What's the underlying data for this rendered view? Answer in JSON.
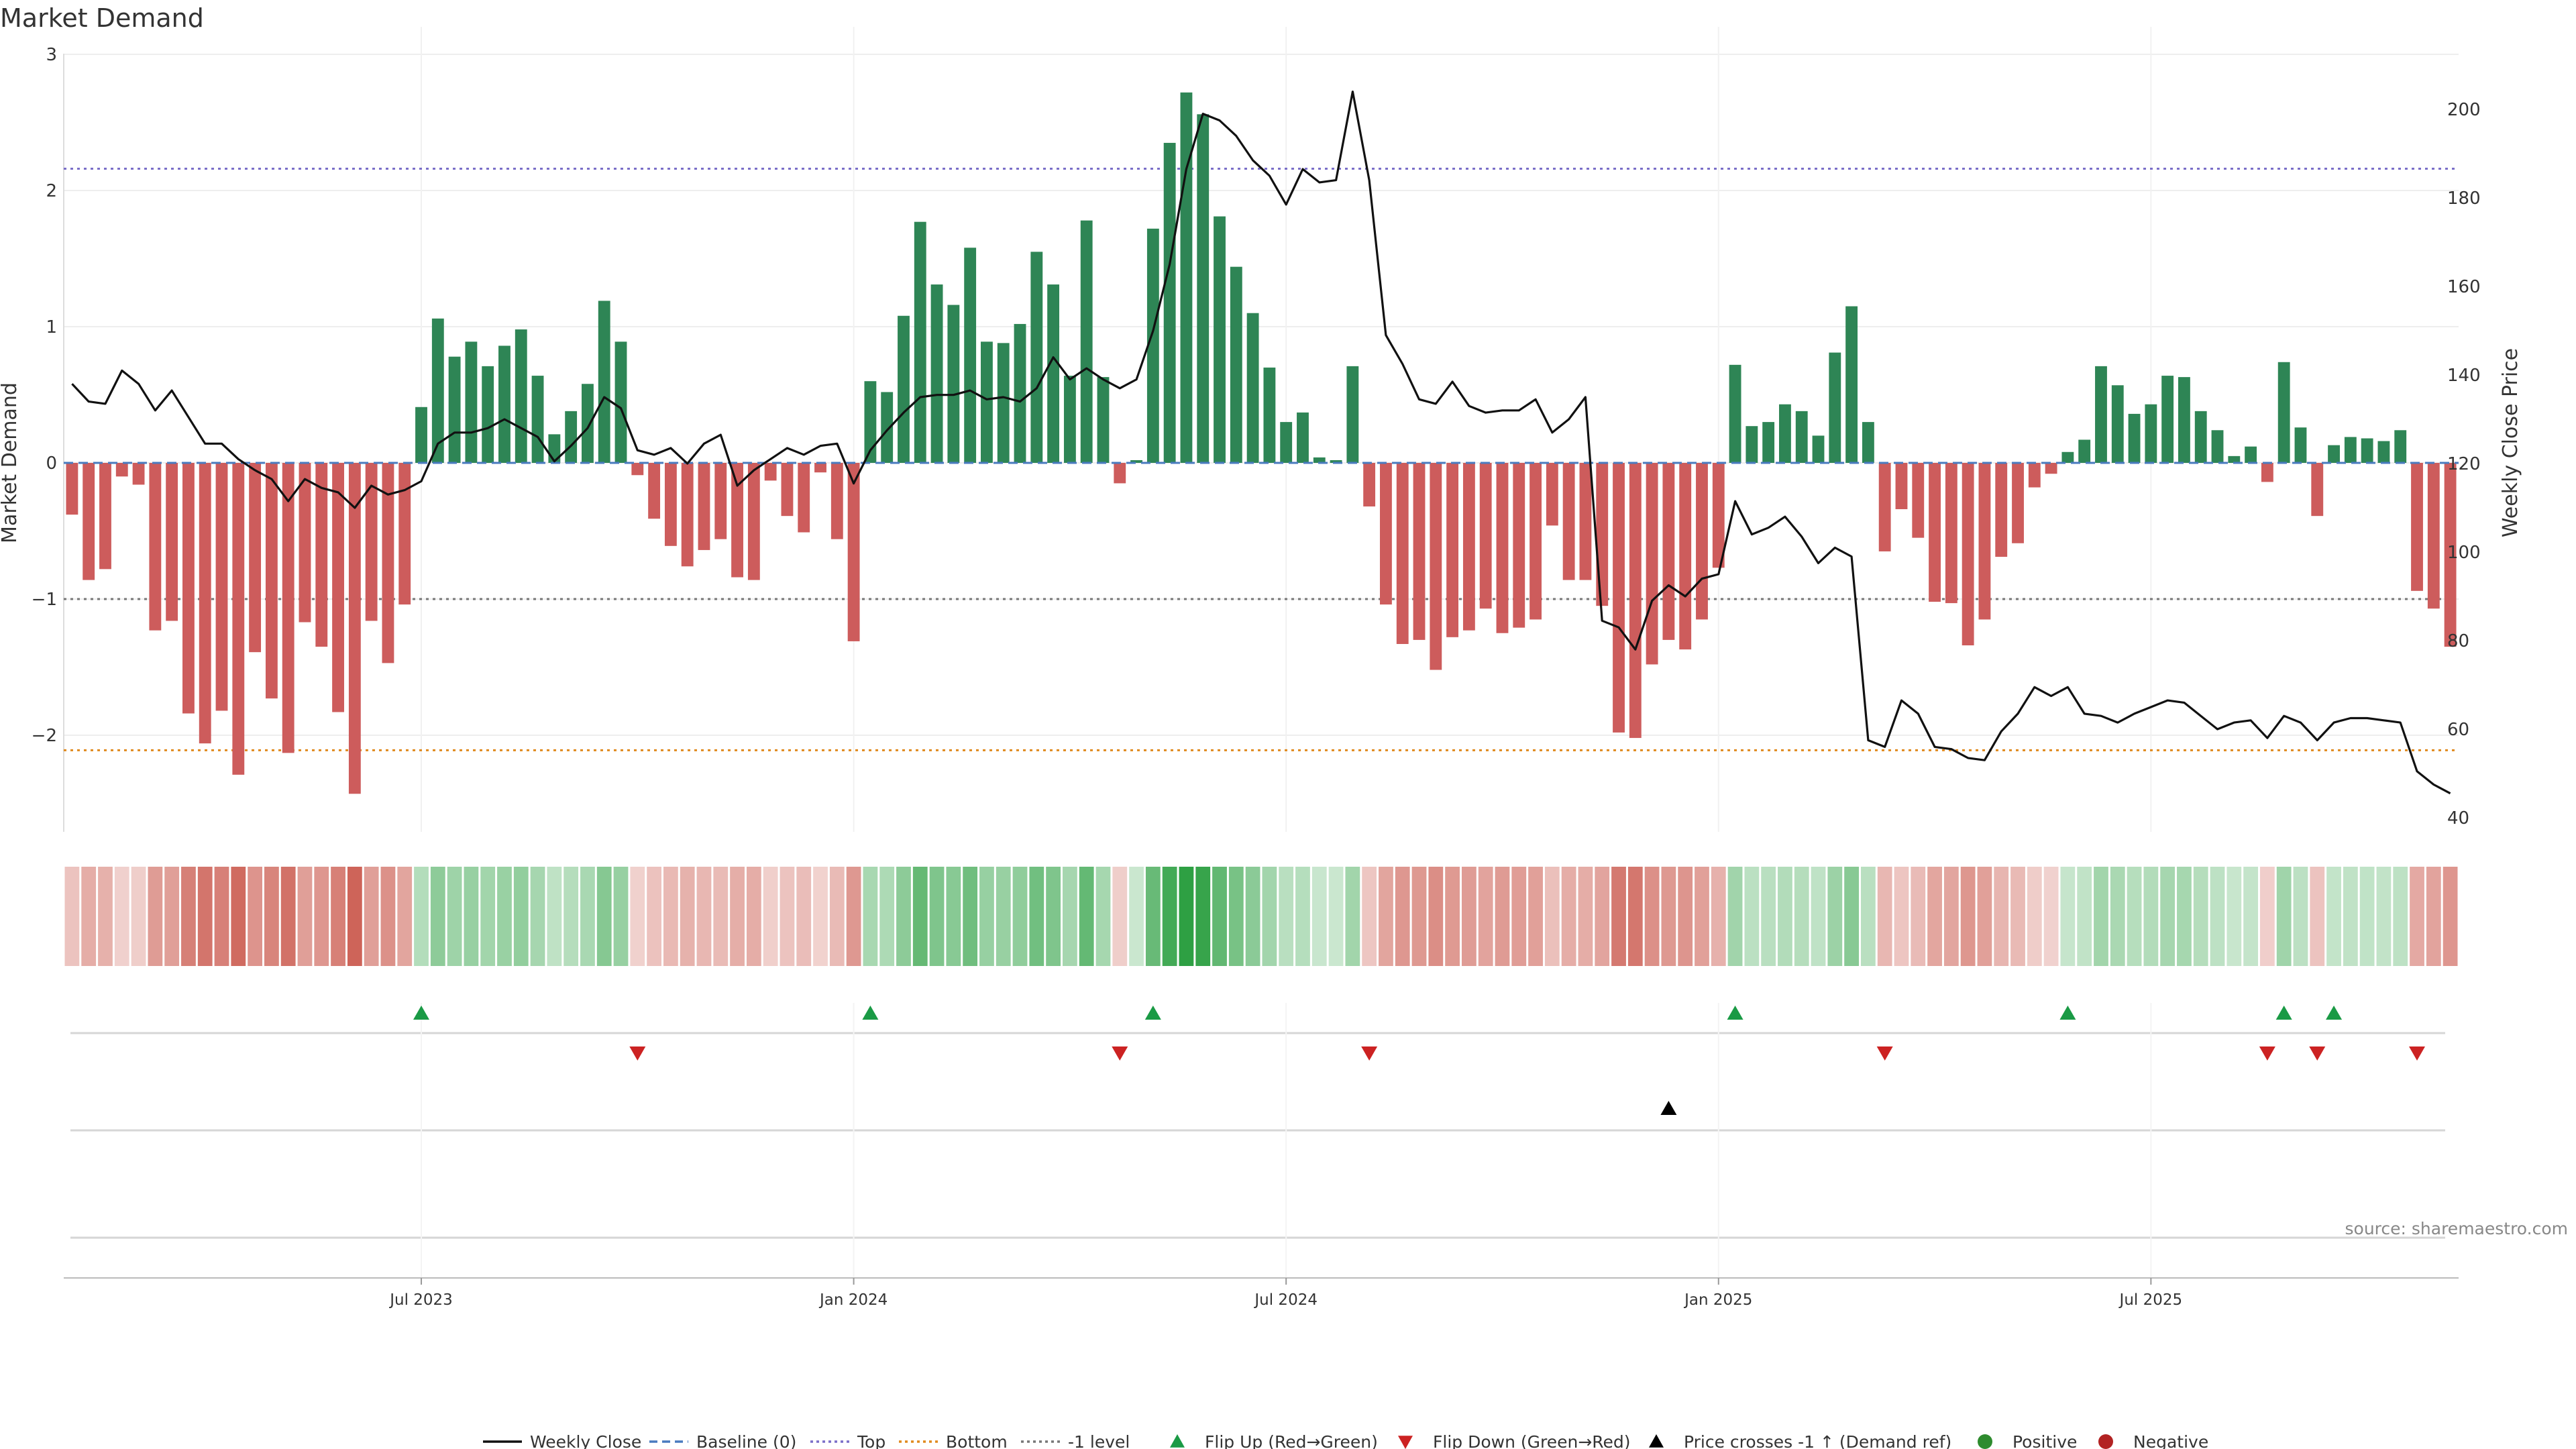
{
  "chart_data": {
    "type": "bar",
    "title": "Market Demand",
    "ylabel": "Market Demand",
    "y2label": "Weekly Close Price",
    "ylim": [
      -2.7,
      3.0
    ],
    "y2lim": [
      40,
      210
    ],
    "yticks": [
      3,
      2,
      1,
      0,
      -1,
      -2
    ],
    "ytick_labels": [
      "3",
      "2",
      "1",
      "0",
      "−1",
      "−2"
    ],
    "y2ticks": [
      200,
      180,
      160,
      140,
      120,
      100,
      80,
      60,
      40
    ],
    "x_ticks": [
      {
        "index": 21,
        "label": "Jul 2023"
      },
      {
        "index": 47,
        "label": "Jan 2024"
      },
      {
        "index": 73,
        "label": "Jul 2024"
      },
      {
        "index": 99,
        "label": "Jan 2025"
      },
      {
        "index": 125,
        "label": "Jul 2025"
      }
    ],
    "reference_lines": [
      {
        "name": "Top",
        "value": 2.16,
        "color": "#7b6fc8",
        "style": "dotted"
      },
      {
        "name": "-1 level",
        "value": -1.0,
        "color": "#777777",
        "style": "dotted"
      },
      {
        "name": "Bottom",
        "value": -2.11,
        "color": "#e08a1e",
        "style": "dotted"
      }
    ],
    "colors": {
      "positive": "#2e8555",
      "negative": "#cd5c5c",
      "close": "#111111",
      "baseline": "#4a7bbf",
      "flip_up": "#1a9a45",
      "flip_down": "#cc2222"
    },
    "series": [
      {
        "name": "Market Demand",
        "values": [
          -0.38,
          -0.86,
          -0.78,
          -0.1,
          -0.16,
          -1.23,
          -1.16,
          -1.84,
          -2.06,
          -1.82,
          -2.29,
          -1.39,
          -1.73,
          -2.13,
          -1.17,
          -1.35,
          -1.83,
          -2.43,
          -1.16,
          -1.47,
          -1.04,
          0.41,
          1.06,
          0.78,
          0.89,
          0.71,
          0.86,
          0.98,
          0.64,
          0.21,
          0.38,
          0.58,
          1.19,
          0.89,
          -0.09,
          -0.41,
          -0.61,
          -0.76,
          -0.64,
          -0.56,
          -0.84,
          -0.86,
          -0.13,
          -0.39,
          -0.51,
          -0.07,
          -0.56,
          -1.31,
          0.6,
          0.52,
          1.08,
          1.77,
          1.31,
          1.16,
          1.58,
          0.89,
          0.88,
          1.02,
          1.55,
          1.31,
          0.64,
          1.78,
          0.63,
          -0.15,
          0.02,
          1.72,
          2.35,
          2.72,
          2.56,
          1.81,
          1.44,
          1.1,
          0.7,
          0.3,
          0.37,
          0.04,
          0.02,
          0.71,
          -0.32,
          -1.04,
          -1.33,
          -1.3,
          -1.52,
          -1.28,
          -1.23,
          -1.07,
          -1.25,
          -1.21,
          -1.15,
          -0.46,
          -0.86,
          -0.86,
          -1.05,
          -1.98,
          -2.02,
          -1.48,
          -1.3,
          -1.37,
          -1.15,
          -0.77,
          0.72,
          0.27,
          0.3,
          0.43,
          0.38,
          0.2,
          0.81,
          1.15,
          0.3,
          -0.65,
          -0.34,
          -0.55,
          -1.02,
          -1.03,
          -1.34,
          -1.15,
          -0.69,
          -0.59,
          -0.18,
          -0.08,
          0.08,
          0.17,
          0.71,
          0.57,
          0.36,
          0.43,
          0.64,
          0.63,
          0.38,
          0.24,
          0.05,
          0.12,
          -0.14,
          0.74,
          0.26,
          -0.39,
          0.13,
          0.19,
          0.18,
          0.16,
          0.24,
          -0.94,
          -1.07,
          -1.35
        ]
      },
      {
        "name": "Weekly Close",
        "values": [
          138,
          134,
          133.5,
          141,
          138,
          132,
          136.5,
          130.5,
          124.5,
          124.5,
          121,
          118.5,
          116.5,
          111.5,
          116.5,
          114.5,
          113.5,
          110,
          115,
          113,
          114,
          116,
          124.5,
          127,
          127,
          128,
          130,
          128,
          126,
          120.5,
          124,
          128,
          135,
          132.5,
          123,
          122,
          123.5,
          120,
          124.5,
          126.5,
          115,
          118.5,
          121,
          123.5,
          122,
          124,
          124.5,
          115.5,
          123,
          127.5,
          131.5,
          135,
          135.5,
          135.5,
          136.5,
          134.5,
          135,
          134,
          137,
          144,
          139,
          141.5,
          139,
          137,
          139,
          150,
          165,
          186.5,
          199,
          197.5,
          194,
          188.5,
          185,
          178.5,
          186.5,
          183.5,
          184,
          204,
          184,
          149,
          142.5,
          134.5,
          133.5,
          138.5,
          133,
          131.5,
          132,
          132,
          134.5,
          127,
          130,
          135,
          84.5,
          83,
          78,
          89,
          92.5,
          90,
          94,
          95,
          111.5,
          104,
          105.5,
          108,
          103.5,
          97.5,
          101,
          99,
          57.5,
          56,
          66.5,
          63.5,
          56,
          55.5,
          53.5,
          53,
          59.5,
          63.5,
          69.5,
          67.5,
          69.5,
          63.5,
          63,
          61.5,
          63.5,
          65,
          66.5,
          66,
          63,
          60,
          61.5,
          62,
          58,
          63,
          61.5,
          57.5,
          61.5,
          62.5,
          62.5,
          62,
          61.5,
          50.5,
          47.5,
          45.5
        ]
      }
    ],
    "flip_up": [
      21,
      48,
      65,
      100,
      120,
      133,
      136
    ],
    "flip_down": [
      34,
      63,
      78,
      109,
      132,
      135,
      141
    ],
    "price_cross": [
      96
    ],
    "legend": [
      "Weekly Close",
      "Baseline (0)",
      "Top",
      "Bottom",
      "-1 level",
      "Flip Up (Red→Green)",
      "Flip Down (Green→Red)",
      "Price crosses -1 ↑ (Demand ref)",
      "Positive",
      "Negative"
    ],
    "source": "source: sharemaestro.com"
  }
}
